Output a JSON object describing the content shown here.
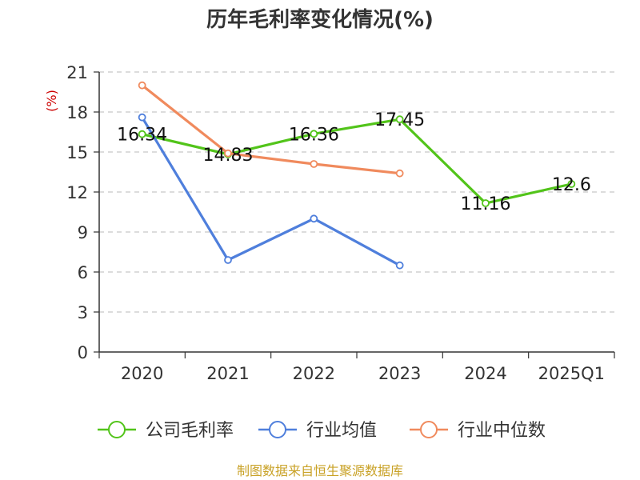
{
  "chart_data": {
    "type": "line",
    "title": "历年毛利率变化情况(%)",
    "y_unit_label": "(%)",
    "categories": [
      "2020",
      "2021",
      "2022",
      "2023",
      "2024",
      "2025Q1"
    ],
    "ylim": [
      0,
      21
    ],
    "yticks": [
      0,
      3,
      6,
      9,
      12,
      15,
      18,
      21
    ],
    "grid": true,
    "legend_position": "bottom",
    "series": [
      {
        "name": "公司毛利率",
        "color": "#52c41a",
        "values": [
          16.34,
          14.83,
          16.36,
          17.45,
          11.16,
          12.6
        ],
        "labels": [
          "16.34",
          "14.83",
          "16.36",
          "17.45",
          "11.16",
          "12.6"
        ]
      },
      {
        "name": "行业均值",
        "color": "#4f7fdc",
        "values": [
          17.6,
          6.9,
          10.0,
          6.5,
          null,
          null
        ]
      },
      {
        "name": "行业中位数",
        "color": "#f08a5d",
        "values": [
          20.0,
          14.9,
          14.1,
          13.4,
          null,
          null
        ]
      }
    ]
  },
  "source_note": "制图数据来自恒生聚源数据库"
}
